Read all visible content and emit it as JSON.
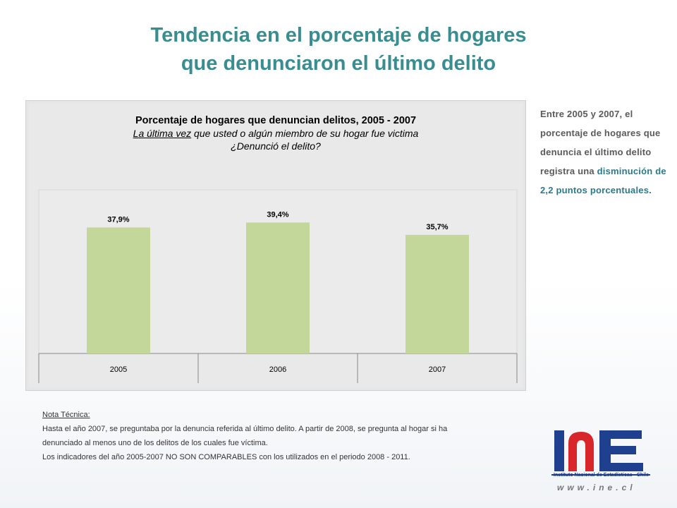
{
  "title": {
    "line1": "Tendencia en el porcentaje de hogares",
    "line2": "que denunciaron el último delito"
  },
  "chart_title": {
    "line1": "Porcentaje de hogares que denuncian delitos, 2005 - 2007",
    "line2_underlined": "La última vez",
    "line2_rest": " que usted o algún miembro de su hogar fue victima",
    "line3": "¿Denunció el delito?"
  },
  "chart_data": {
    "type": "bar",
    "categories": [
      "2005",
      "2006",
      "2007"
    ],
    "values": [
      37.9,
      39.4,
      35.7
    ],
    "value_labels": [
      "37,9%",
      "39,4%",
      "35,7%"
    ],
    "ylim": [
      0,
      45
    ],
    "bar_color": "#c4d79b"
  },
  "side_text": {
    "normal": "Entre 2005 y 2007, el porcentaje de hogares que denuncia el último delito registra una ",
    "highlight": "disminución de 2,2 puntos porcentuales."
  },
  "note": {
    "label": "Nota Técnica:",
    "line1": "Hasta el año 2007, se preguntaba por la denuncia referida al último delito. A partir de 2008, se pregunta al hogar si ha",
    "line2": "denunciado al menos uno de los delitos de los cuales fue víctima.",
    "line3": "Los indicadores del año 2005-2007  NO SON COMPARABLES con los utilizados en el periodo 2008 - 2011."
  },
  "logo": {
    "subtitle": "Instituto Nacional de Estadísticas - Chile",
    "url": "www.ine.cl"
  }
}
